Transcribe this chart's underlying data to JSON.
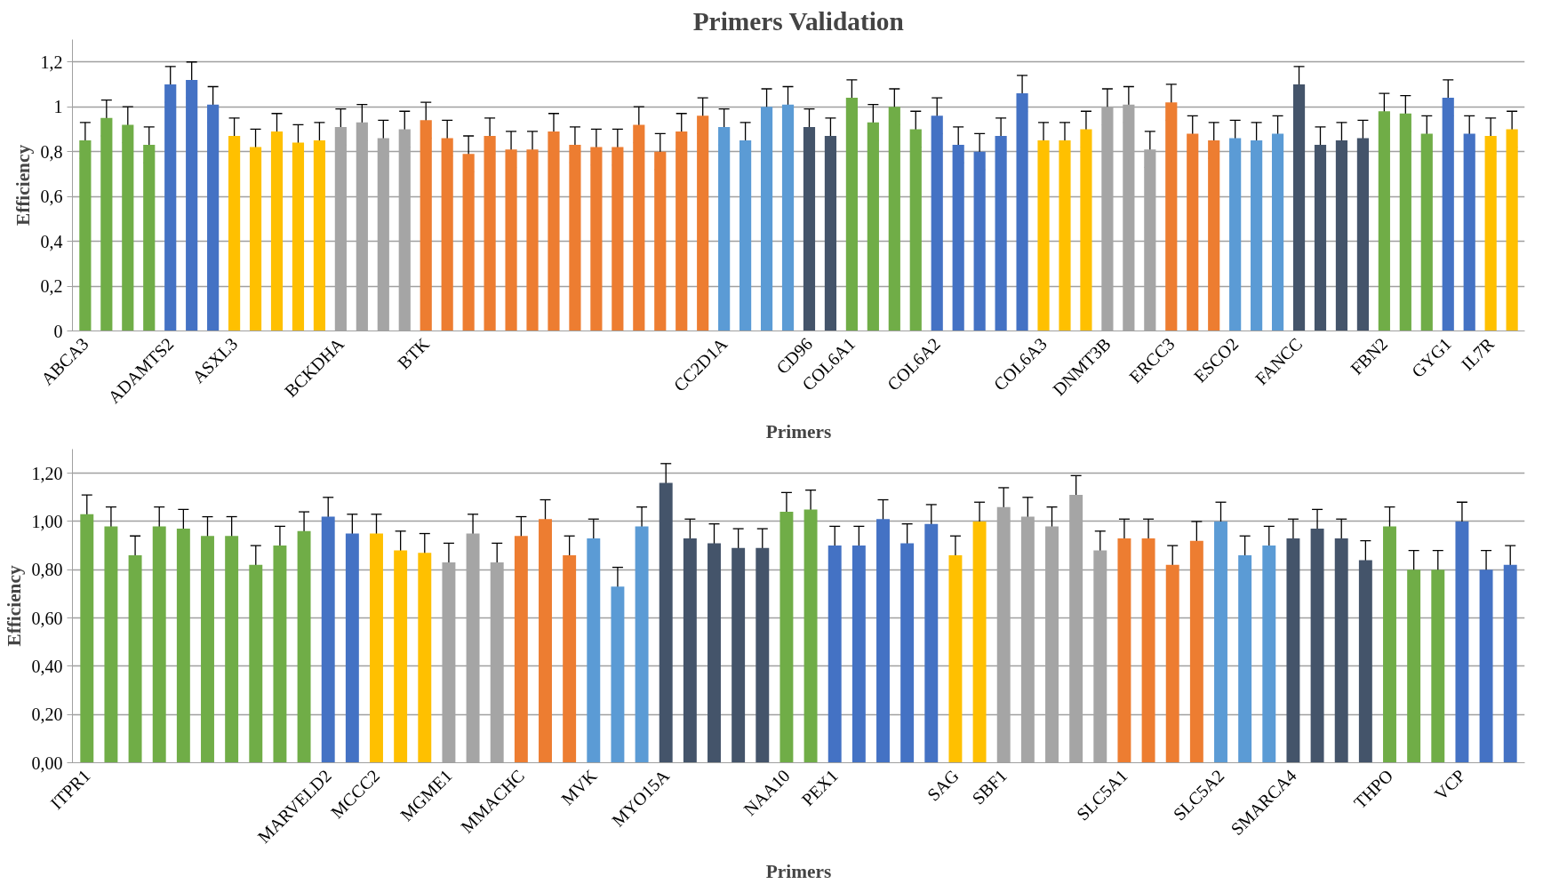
{
  "chart_data": [
    {
      "type": "bar",
      "title": "Primers Validation",
      "xlabel": "Primers",
      "ylabel": "Efficiency",
      "categories": [
        "ABCA3",
        null,
        null,
        null,
        "ADAMTS2",
        null,
        null,
        "ASXL3",
        null,
        null,
        null,
        null,
        "BCKDHA",
        null,
        null,
        null,
        "BTK",
        null,
        null,
        null,
        null,
        null,
        null,
        null,
        null,
        null,
        null,
        null,
        null,
        null,
        "CC2D1A",
        null,
        null,
        null,
        "CD96",
        null,
        "COL6A1",
        null,
        null,
        null,
        "COL6A2",
        null,
        null,
        null,
        null,
        "COL6A3",
        null,
        null,
        "DNMT3B",
        null,
        null,
        "ERCC3",
        null,
        null,
        "ESCO2",
        null,
        null,
        "FANCC",
        null,
        null,
        null,
        "FBN2",
        null,
        null,
        "GYG1",
        null,
        "IL7R",
        null
      ],
      "values": [
        0.85,
        0.95,
        0.92,
        0.83,
        1.1,
        1.12,
        1.01,
        0.87,
        0.82,
        0.89,
        0.84,
        0.85,
        0.91,
        0.93,
        0.86,
        0.9,
        0.94,
        0.86,
        0.79,
        0.87,
        0.81,
        0.81,
        0.89,
        0.83,
        0.82,
        0.82,
        0.92,
        0.8,
        0.89,
        0.96,
        0.91,
        0.85,
        1.0,
        1.01,
        0.91,
        0.87,
        1.04,
        0.93,
        1.0,
        0.9,
        0.96,
        0.83,
        0.8,
        0.87,
        1.06,
        0.85,
        0.85,
        0.9,
        1.0,
        1.01,
        0.81,
        1.02,
        0.88,
        0.85,
        0.86,
        0.85,
        0.88,
        1.1,
        0.83,
        0.85,
        0.86,
        0.98,
        0.97,
        0.88,
        1.04,
        0.88,
        0.87,
        0.9
      ],
      "errors": [
        0.08,
        0.08,
        0.08,
        0.08,
        0.08,
        0.08,
        0.08,
        0.08,
        0.08,
        0.08,
        0.08,
        0.08,
        0.08,
        0.08,
        0.08,
        0.08,
        0.08,
        0.08,
        0.08,
        0.08,
        0.08,
        0.08,
        0.08,
        0.08,
        0.08,
        0.08,
        0.08,
        0.08,
        0.08,
        0.08,
        0.08,
        0.08,
        0.08,
        0.08,
        0.08,
        0.08,
        0.08,
        0.08,
        0.08,
        0.08,
        0.08,
        0.08,
        0.08,
        0.08,
        0.08,
        0.08,
        0.08,
        0.08,
        0.08,
        0.08,
        0.08,
        0.08,
        0.08,
        0.08,
        0.08,
        0.08,
        0.08,
        0.08,
        0.08,
        0.08,
        0.08,
        0.08,
        0.08,
        0.08,
        0.08,
        0.08,
        0.08,
        0.08
      ],
      "colors": [
        "#70ad47",
        "#70ad47",
        "#70ad47",
        "#70ad47",
        "#4472c4",
        "#4472c4",
        "#4472c4",
        "#ffc000",
        "#ffc000",
        "#ffc000",
        "#ffc000",
        "#ffc000",
        "#a5a5a5",
        "#a5a5a5",
        "#a5a5a5",
        "#a5a5a5",
        "#ed7d31",
        "#ed7d31",
        "#ed7d31",
        "#ed7d31",
        "#ed7d31",
        "#ed7d31",
        "#ed7d31",
        "#ed7d31",
        "#ed7d31",
        "#ed7d31",
        "#ed7d31",
        "#ed7d31",
        "#ed7d31",
        "#ed7d31",
        "#5b9bd5",
        "#5b9bd5",
        "#5b9bd5",
        "#5b9bd5",
        "#44546a",
        "#44546a",
        "#70ad47",
        "#70ad47",
        "#70ad47",
        "#70ad47",
        "#4472c4",
        "#4472c4",
        "#4472c4",
        "#4472c4",
        "#4472c4",
        "#ffc000",
        "#ffc000",
        "#ffc000",
        "#a5a5a5",
        "#a5a5a5",
        "#a5a5a5",
        "#ed7d31",
        "#ed7d31",
        "#ed7d31",
        "#5b9bd5",
        "#5b9bd5",
        "#5b9bd5",
        "#44546a",
        "#44546a",
        "#44546a",
        "#44546a",
        "#70ad47",
        "#70ad47",
        "#70ad47",
        "#4472c4",
        "#4472c4",
        "#ffc000",
        "#ffc000"
      ],
      "ylim": [
        0,
        1.3
      ],
      "yticks": [
        0,
        {
          "value": 0.2,
          "label": "0,2"
        },
        {
          "value": 0.4,
          "label": "0,4"
        },
        {
          "value": 0.6,
          "label": "0,6"
        },
        {
          "value": 0.8,
          "label": "0,8"
        },
        1,
        {
          "value": 1.2,
          "label": "1,2"
        }
      ],
      "grid": "y"
    },
    {
      "type": "bar",
      "xlabel": "Primers",
      "ylabel": "Efficiency",
      "categories": [
        "ITPR1",
        null,
        null,
        null,
        null,
        null,
        null,
        null,
        null,
        null,
        "MARVELD2",
        null,
        "MCCC2",
        null,
        null,
        "MGME1",
        null,
        null,
        "MMACHC",
        null,
        null,
        "MVK",
        null,
        null,
        "MYO15A",
        null,
        null,
        null,
        null,
        "NAA10",
        null,
        "PEX1",
        null,
        null,
        null,
        null,
        "SAG",
        null,
        "SBF1",
        null,
        null,
        null,
        null,
        "SLC5A1",
        null,
        null,
        null,
        "SLC5A2",
        null,
        null,
        "SMARCA4",
        null,
        null,
        null,
        "THPO",
        null,
        null,
        "VCP",
        null,
        null
      ],
      "values": [
        1.03,
        0.98,
        0.86,
        0.98,
        0.97,
        0.94,
        0.94,
        0.82,
        0.9,
        0.96,
        1.02,
        0.95,
        0.95,
        0.88,
        0.87,
        0.83,
        0.95,
        0.83,
        0.94,
        1.01,
        0.86,
        0.93,
        0.73,
        0.98,
        1.16,
        0.93,
        0.91,
        0.89,
        0.89,
        1.04,
        1.05,
        0.9,
        0.9,
        1.01,
        0.91,
        0.99,
        0.86,
        1.0,
        1.06,
        1.02,
        0.98,
        1.11,
        0.88,
        0.93,
        0.93,
        0.82,
        0.92,
        1.0,
        0.86,
        0.9,
        0.93,
        0.97,
        0.93,
        0.84,
        0.98,
        0.8,
        0.8,
        1.0,
        0.8,
        0.82
      ],
      "errors": [
        0.08,
        0.08,
        0.08,
        0.08,
        0.08,
        0.08,
        0.08,
        0.08,
        0.08,
        0.08,
        0.08,
        0.08,
        0.08,
        0.08,
        0.08,
        0.08,
        0.08,
        0.08,
        0.08,
        0.08,
        0.08,
        0.08,
        0.08,
        0.08,
        0.08,
        0.08,
        0.08,
        0.08,
        0.08,
        0.08,
        0.08,
        0.08,
        0.08,
        0.08,
        0.08,
        0.08,
        0.08,
        0.08,
        0.08,
        0.08,
        0.08,
        0.08,
        0.08,
        0.08,
        0.08,
        0.08,
        0.08,
        0.08,
        0.08,
        0.08,
        0.08,
        0.08,
        0.08,
        0.08,
        0.08,
        0.08,
        0.08,
        0.08,
        0.08,
        0.08
      ],
      "colors": [
        "#70ad47",
        "#70ad47",
        "#70ad47",
        "#70ad47",
        "#70ad47",
        "#70ad47",
        "#70ad47",
        "#70ad47",
        "#70ad47",
        "#70ad47",
        "#4472c4",
        "#4472c4",
        "#ffc000",
        "#ffc000",
        "#ffc000",
        "#a5a5a5",
        "#a5a5a5",
        "#a5a5a5",
        "#ed7d31",
        "#ed7d31",
        "#ed7d31",
        "#5b9bd5",
        "#5b9bd5",
        "#5b9bd5",
        "#44546a",
        "#44546a",
        "#44546a",
        "#44546a",
        "#44546a",
        "#70ad47",
        "#70ad47",
        "#4472c4",
        "#4472c4",
        "#4472c4",
        "#4472c4",
        "#4472c4",
        "#ffc000",
        "#ffc000",
        "#a5a5a5",
        "#a5a5a5",
        "#a5a5a5",
        "#a5a5a5",
        "#a5a5a5",
        "#ed7d31",
        "#ed7d31",
        "#ed7d31",
        "#ed7d31",
        "#5b9bd5",
        "#5b9bd5",
        "#5b9bd5",
        "#44546a",
        "#44546a",
        "#44546a",
        "#44546a",
        "#70ad47",
        "#70ad47",
        "#70ad47",
        "#4472c4",
        "#4472c4",
        "#4472c4"
      ],
      "ylim": [
        0,
        1.3
      ],
      "yticks": [
        {
          "value": 0,
          "label": "0,00"
        },
        {
          "value": 0.2,
          "label": "0,20"
        },
        {
          "value": 0.4,
          "label": "0,40"
        },
        {
          "value": 0.6,
          "label": "0,60"
        },
        {
          "value": 0.8,
          "label": "0,80"
        },
        {
          "value": 1.0,
          "label": "1,00"
        },
        {
          "value": 1.2,
          "label": "1,20"
        }
      ],
      "grid": "y"
    }
  ]
}
